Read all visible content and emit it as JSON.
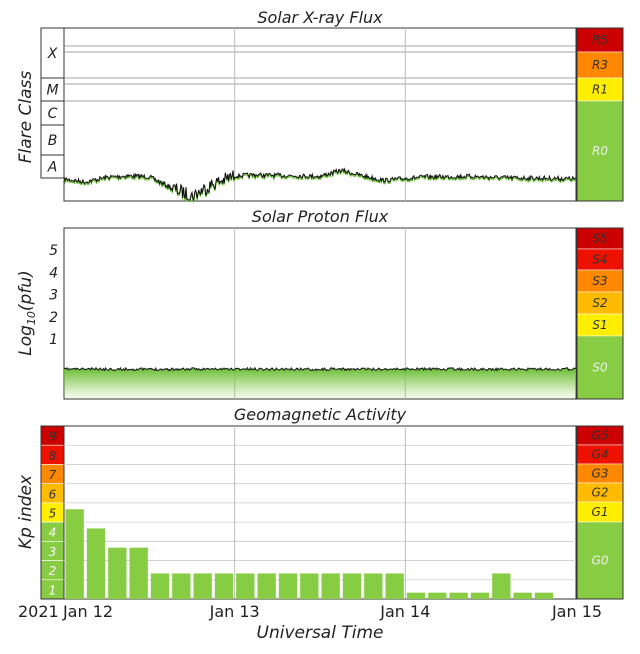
{
  "charts": {
    "xray": {
      "title": "Solar X-ray Flux",
      "ylabel": "Flare Class",
      "classes": [
        "X",
        "M",
        "C",
        "B",
        "A"
      ],
      "scale": [
        {
          "label": "R5",
          "color": "#cc0000"
        },
        {
          "label": "R3",
          "color": "#ff8800"
        },
        {
          "label": "R1",
          "color": "#ffee00"
        },
        {
          "label": "R0",
          "color": "#88cc44"
        }
      ]
    },
    "proton": {
      "title": "Solar Proton Flux",
      "ylabel": "Log10(pfu)",
      "yticks": [
        "5",
        "4",
        "3",
        "2",
        "1"
      ],
      "scale": [
        {
          "label": "S5",
          "color": "#cc0000"
        },
        {
          "label": "S4",
          "color": "#ee1100"
        },
        {
          "label": "S3",
          "color": "#ff8800"
        },
        {
          "label": "S2",
          "color": "#ffbb00"
        },
        {
          "label": "S1",
          "color": "#ffee00"
        },
        {
          "label": "S0",
          "color": "#88cc44"
        }
      ]
    },
    "geo": {
      "title": "Geomagnetic Activity",
      "ylabel": "Kp index",
      "xlabel": "Universal Time",
      "scale": [
        {
          "label": "G5",
          "color": "#cc0000"
        },
        {
          "label": "G4",
          "color": "#ee1100"
        },
        {
          "label": "G3",
          "color": "#ff8800"
        },
        {
          "label": "G2",
          "color": "#ffbb00"
        },
        {
          "label": "G1",
          "color": "#ffee00"
        },
        {
          "label": "G0",
          "color": "#88cc44"
        }
      ],
      "kp_levels": [
        {
          "label": "9",
          "color": "#cc0000"
        },
        {
          "label": "8",
          "color": "#ee1100"
        },
        {
          "label": "7",
          "color": "#ff8800"
        },
        {
          "label": "6",
          "color": "#ffbb00"
        },
        {
          "label": "5",
          "color": "#ffee00"
        },
        {
          "label": "4",
          "color": "#88cc44"
        },
        {
          "label": "3",
          "color": "#88cc44"
        },
        {
          "label": "2",
          "color": "#88cc44"
        },
        {
          "label": "1",
          "color": "#88cc44"
        }
      ]
    }
  },
  "x_axis": {
    "year": "2021",
    "ticks": [
      "Jan 12",
      "Jan 13",
      "Jan 14",
      "Jan 15"
    ]
  },
  "chart_data": [
    {
      "type": "line",
      "title": "Solar X-ray Flux",
      "ylabel": "Flare Class",
      "x": [
        0,
        3,
        6,
        9,
        12,
        15,
        18,
        21,
        24,
        27,
        30,
        33,
        36,
        39,
        42,
        45,
        48,
        51,
        54,
        57,
        60,
        63,
        66,
        69,
        72
      ],
      "x_unit": "hours since 2021-01-12 00:00 UTC",
      "series": [
        {
          "values": [
            8e-09,
            6e-09,
            9.5e-09,
            1.1e-08,
            1e-08,
            3.5e-09,
            1.5e-09,
            5e-09,
            1.1e-08,
            1.2e-08,
            1.15e-08,
            1.1e-08,
            1.05e-08,
            1.9e-08,
            1.1e-08,
            7e-09,
            8.5e-09,
            1e-08,
            1e-08,
            1.05e-08,
            9.5e-09,
            9e-09,
            8.8e-09,
            8.5e-09,
            8.2e-09
          ]
        }
      ],
      "yscale": "log",
      "ylim": [
        1e-09,
        0.01
      ]
    },
    {
      "type": "area",
      "title": "Solar Proton Flux",
      "ylabel": "Log10(pfu)",
      "x": [
        0,
        12,
        24,
        36,
        48,
        60,
        72
      ],
      "x_unit": "hours since 2021-01-12 00:00 UTC",
      "series": [
        {
          "values": [
            -0.35,
            -0.36,
            -0.35,
            -0.36,
            -0.35,
            -0.36,
            -0.35
          ]
        }
      ],
      "ylim": [
        -1.7,
        6
      ]
    },
    {
      "type": "bar",
      "title": "Geomagnetic Activity",
      "ylabel": "Kp index",
      "xlabel": "Universal Time",
      "x": [
        0,
        3,
        6,
        9,
        12,
        15,
        18,
        21,
        24,
        27,
        30,
        33,
        36,
        39,
        42,
        45,
        48,
        51,
        54,
        57,
        60,
        63,
        66
      ],
      "x_unit": "hours since 2021-01-12 00:00 UTC",
      "values": [
        4.67,
        3.67,
        2.67,
        2.67,
        1.33,
        1.33,
        1.33,
        1.33,
        1.33,
        1.33,
        1.33,
        1.33,
        1.33,
        1.33,
        1.33,
        1.33,
        0.33,
        0.33,
        0.33,
        0.33,
        1.33,
        0.33,
        0.33
      ],
      "ylim": [
        0,
        9
      ]
    }
  ]
}
